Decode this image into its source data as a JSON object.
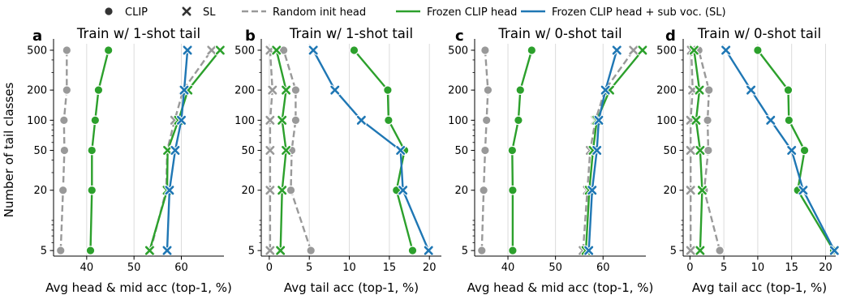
{
  "legend": {
    "items": [
      {
        "label": "CLIP",
        "marker": "circle"
      },
      {
        "label": "SL",
        "marker": "x"
      },
      {
        "label": "Random init head",
        "line": "dashed",
        "color": "#999999"
      },
      {
        "label": "Frozen CLIP head",
        "line": "solid",
        "color": "#2ca02c"
      },
      {
        "label": "Frozen CLIP head + sub voc. (SL)",
        "line": "solid",
        "color": "#1f77b4"
      }
    ]
  },
  "ylabel": "Number of tail classes",
  "colors": {
    "random": "#999999",
    "frozen": "#2ca02c",
    "sub": "#1f77b4"
  },
  "chart_data": [
    {
      "panel": "a",
      "type": "line",
      "title": "Train w/ 1-shot tail",
      "xlabel": "Avg head & mid acc (top-1, %)",
      "xlim": [
        33,
        69
      ],
      "xticks": [
        40,
        50,
        60
      ],
      "y_scale": "log",
      "y": [
        5,
        20,
        50,
        100,
        200,
        500
      ],
      "series": [
        {
          "method": "Random init head",
          "marker": "CLIP",
          "color": "#999999",
          "dashed": true,
          "x": [
            34.5,
            35,
            35.3,
            35.2,
            35.8,
            35.8
          ]
        },
        {
          "method": "Random init head",
          "marker": "SL",
          "color": "#999999",
          "dashed": true,
          "x": [
            53.5,
            56.8,
            57.0,
            58.6,
            60.4,
            66.4
          ]
        },
        {
          "method": "Frozen CLIP head",
          "marker": "CLIP",
          "color": "#2ca02c",
          "dashed": false,
          "x": [
            40.8,
            41.1,
            41.1,
            41.8,
            42.5,
            44.6
          ]
        },
        {
          "method": "Frozen CLIP head",
          "marker": "SL",
          "color": "#2ca02c",
          "dashed": false,
          "x": [
            53.3,
            57.0,
            57.1,
            59.4,
            61.4,
            68.2
          ]
        },
        {
          "method": "Frozen CLIP head + sub voc. (SL)",
          "marker": "SL",
          "color": "#1f77b4",
          "dashed": false,
          "x": [
            57.0,
            57.5,
            58.7,
            60.0,
            60.6,
            61.3
          ]
        }
      ]
    },
    {
      "panel": "b",
      "type": "line",
      "title": "Train w/ 1-shot tail",
      "xlabel": "Avg tail acc (top-1, %)",
      "xlim": [
        -1,
        21.5
      ],
      "xticks": [
        0,
        5,
        10,
        15,
        20
      ],
      "y_scale": "log",
      "y": [
        5,
        20,
        50,
        100,
        200,
        500
      ],
      "series": [
        {
          "method": "Random init head",
          "marker": "CLIP",
          "color": "#999999",
          "dashed": true,
          "x": [
            5.2,
            2.7,
            2.8,
            3.3,
            3.3,
            1.8
          ]
        },
        {
          "method": "Random init head",
          "marker": "SL",
          "color": "#999999",
          "dashed": true,
          "x": [
            0.1,
            0.1,
            0.1,
            0.1,
            0.4,
            0.1
          ]
        },
        {
          "method": "Frozen CLIP head",
          "marker": "CLIP",
          "color": "#2ca02c",
          "dashed": false,
          "x": [
            17.9,
            15.9,
            16.9,
            14.9,
            14.8,
            10.6
          ]
        },
        {
          "method": "Frozen CLIP head",
          "marker": "SL",
          "color": "#2ca02c",
          "dashed": false,
          "x": [
            1.4,
            1.6,
            2.1,
            1.6,
            2.1,
            0.9
          ]
        },
        {
          "method": "Frozen CLIP head + sub voc. (SL)",
          "marker": "SL",
          "color": "#1f77b4",
          "dashed": false,
          "x": [
            19.9,
            16.7,
            16.4,
            11.5,
            8.2,
            5.5
          ]
        }
      ]
    },
    {
      "panel": "c",
      "type": "line",
      "title": "Train w/ 0-shot tail",
      "xlabel": "Avg head & mid acc (top-1, %)",
      "xlim": [
        33,
        69
      ],
      "xticks": [
        40,
        50,
        60
      ],
      "y_scale": "log",
      "y": [
        5,
        20,
        50,
        100,
        200,
        500
      ],
      "series": [
        {
          "method": "Random init head",
          "marker": "CLIP",
          "color": "#999999",
          "dashed": true,
          "x": [
            34.5,
            34.9,
            35.2,
            35.5,
            35.8,
            35.2
          ]
        },
        {
          "method": "Random init head",
          "marker": "SL",
          "color": "#999999",
          "dashed": true,
          "x": [
            55.8,
            56.7,
            57.3,
            58.4,
            60.4,
            66.4
          ]
        },
        {
          "method": "Frozen CLIP head",
          "marker": "CLIP",
          "color": "#2ca02c",
          "dashed": false,
          "x": [
            41.0,
            41.0,
            40.9,
            42.2,
            42.6,
            45.0
          ]
        },
        {
          "method": "Frozen CLIP head",
          "marker": "SL",
          "color": "#2ca02c",
          "dashed": false,
          "x": [
            56.4,
            57.1,
            57.9,
            58.7,
            61.4,
            68.3
          ]
        },
        {
          "method": "Frozen CLIP head + sub voc. (SL)",
          "marker": "SL",
          "color": "#1f77b4",
          "dashed": false,
          "x": [
            57.0,
            57.7,
            58.7,
            59.1,
            60.5,
            62.9
          ]
        }
      ]
    },
    {
      "panel": "d",
      "type": "line",
      "title": "Train w/ 0-shot tail",
      "xlabel": "Avg tail acc (top-1, %)",
      "xlim": [
        -1,
        21.5
      ],
      "xticks": [
        0,
        5,
        10,
        15,
        20
      ],
      "y_scale": "log",
      "y": [
        5,
        20,
        50,
        100,
        200,
        500
      ],
      "series": [
        {
          "method": "Random init head",
          "marker": "CLIP",
          "color": "#999999",
          "dashed": true,
          "x": [
            4.4,
            2.1,
            2.7,
            2.6,
            2.8,
            1.3
          ]
        },
        {
          "method": "Random init head",
          "marker": "SL",
          "color": "#999999",
          "dashed": true,
          "x": [
            0.1,
            0.1,
            0.1,
            0.1,
            0.4,
            0.2
          ]
        },
        {
          "method": "Frozen CLIP head",
          "marker": "CLIP",
          "color": "#2ca02c",
          "dashed": false,
          "x": [
            21.2,
            15.9,
            16.9,
            14.6,
            14.5,
            10.0
          ]
        },
        {
          "method": "Frozen CLIP head",
          "marker": "SL",
          "color": "#2ca02c",
          "dashed": false,
          "x": [
            1.5,
            1.8,
            1.5,
            0.9,
            1.4,
            0.6
          ]
        },
        {
          "method": "Frozen CLIP head + sub voc. (SL)",
          "marker": "SL",
          "color": "#1f77b4",
          "dashed": false,
          "x": [
            21.3,
            16.7,
            15.0,
            11.9,
            9.0,
            5.3
          ]
        }
      ]
    }
  ]
}
